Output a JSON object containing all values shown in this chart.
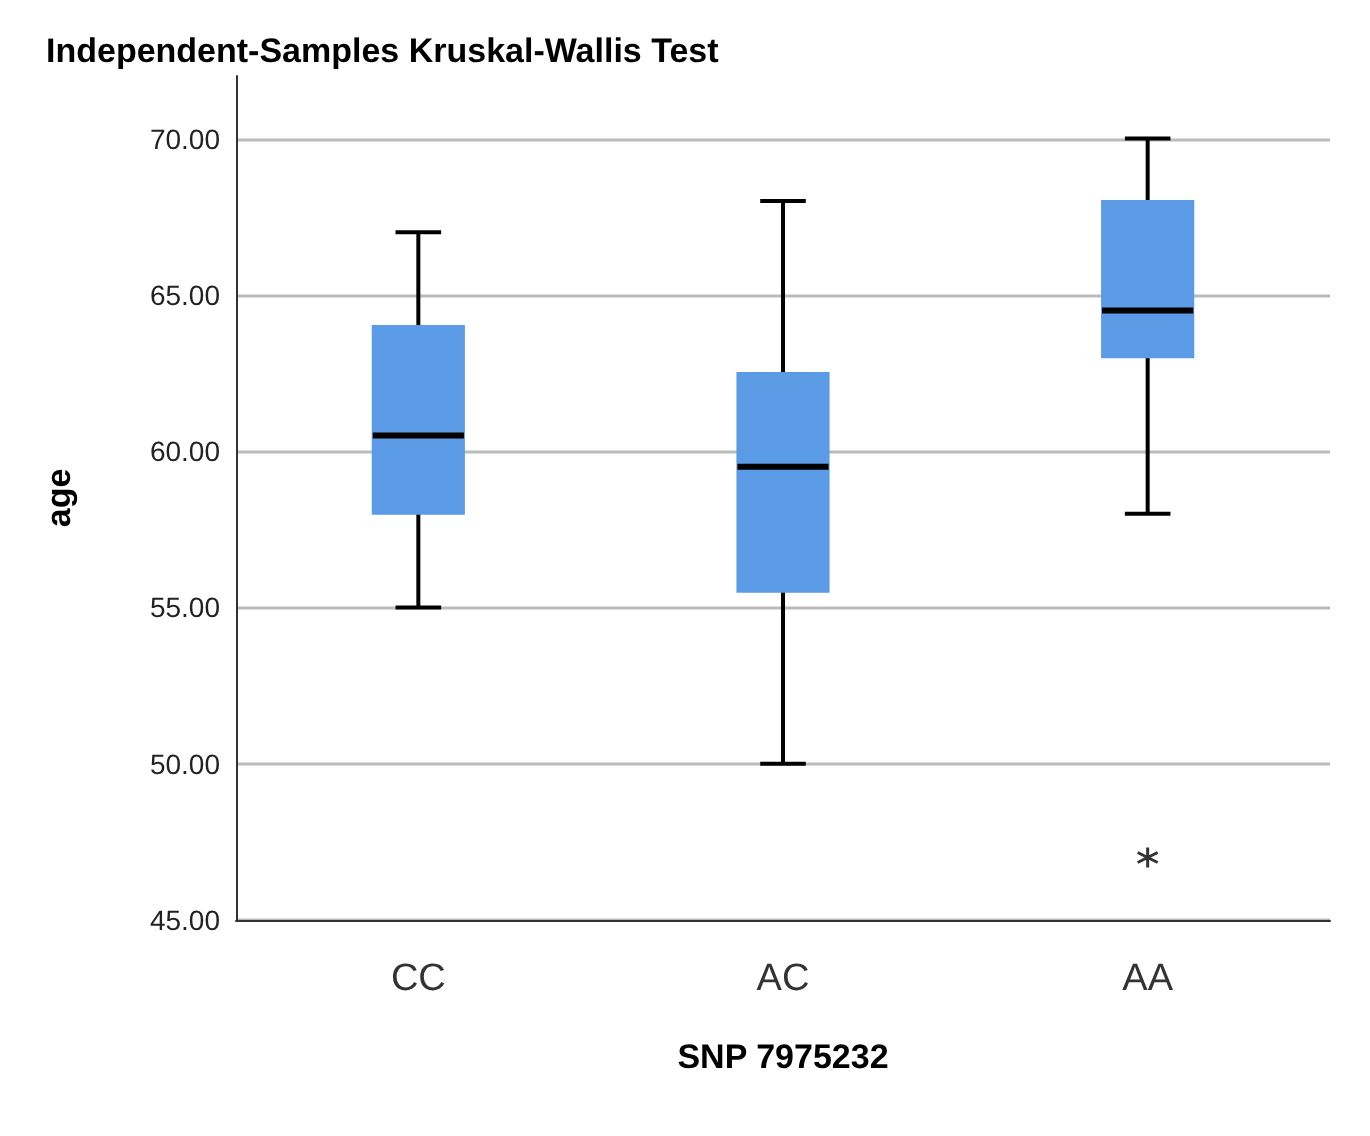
{
  "chart_data": {
    "type": "box",
    "title": "Independent-Samples Kruskal-Wallis Test",
    "xlabel": "SNP 7975232",
    "ylabel": "age",
    "categories": [
      "CC",
      "AC",
      "AA"
    ],
    "color": "#5b9be6",
    "boxes": [
      {
        "low": 55,
        "q1": 58,
        "median": 60.5,
        "q3": 64,
        "high": 67
      },
      {
        "low": 50,
        "q1": 55.5,
        "median": 59.5,
        "q3": 62.5,
        "high": 68
      },
      {
        "low": 58,
        "q1": 63,
        "median": 64.5,
        "q3": 68,
        "high": 70,
        "outliers": [
          47
        ]
      }
    ],
    "ylim": [
      45,
      72
    ],
    "yticks": [
      {
        "value": 45,
        "label": "45.00"
      },
      {
        "value": 50,
        "label": "50.00"
      },
      {
        "value": 55,
        "label": "55.00"
      },
      {
        "value": 60,
        "label": "60.00"
      },
      {
        "value": 65,
        "label": "65.00"
      },
      {
        "value": 70,
        "label": "70.00"
      }
    ],
    "grid": "y"
  }
}
